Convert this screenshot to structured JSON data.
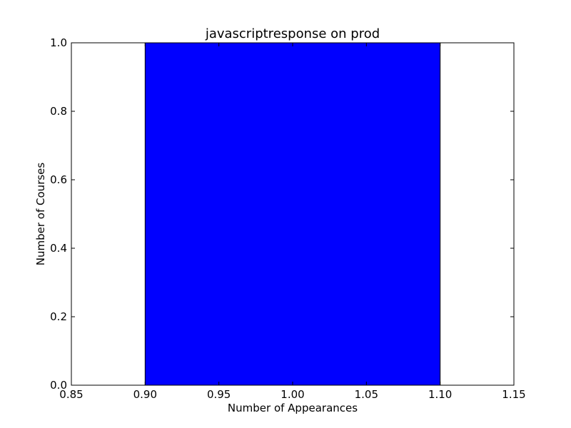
{
  "chart_data": {
    "type": "bar",
    "title": "javascriptresponse on prod",
    "xlabel": "Number of Appearances",
    "ylabel": "Number of Courses",
    "xlim": [
      0.85,
      1.15
    ],
    "ylim": [
      0.0,
      1.0
    ],
    "xticks": [
      0.85,
      0.9,
      0.95,
      1.0,
      1.05,
      1.1,
      1.15
    ],
    "xtick_labels": [
      "0.85",
      "0.90",
      "0.95",
      "1.00",
      "1.05",
      "1.10",
      "1.15"
    ],
    "yticks": [
      0.0,
      0.2,
      0.4,
      0.6,
      0.8,
      1.0
    ],
    "ytick_labels": [
      "0.0",
      "0.2",
      "0.4",
      "0.6",
      "0.8",
      "1.0"
    ],
    "bars": [
      {
        "x_start": 0.9,
        "x_end": 1.1,
        "value": 1.0
      }
    ],
    "bar_color": "#0000ff",
    "edge_color": "#000000",
    "grid": false
  }
}
